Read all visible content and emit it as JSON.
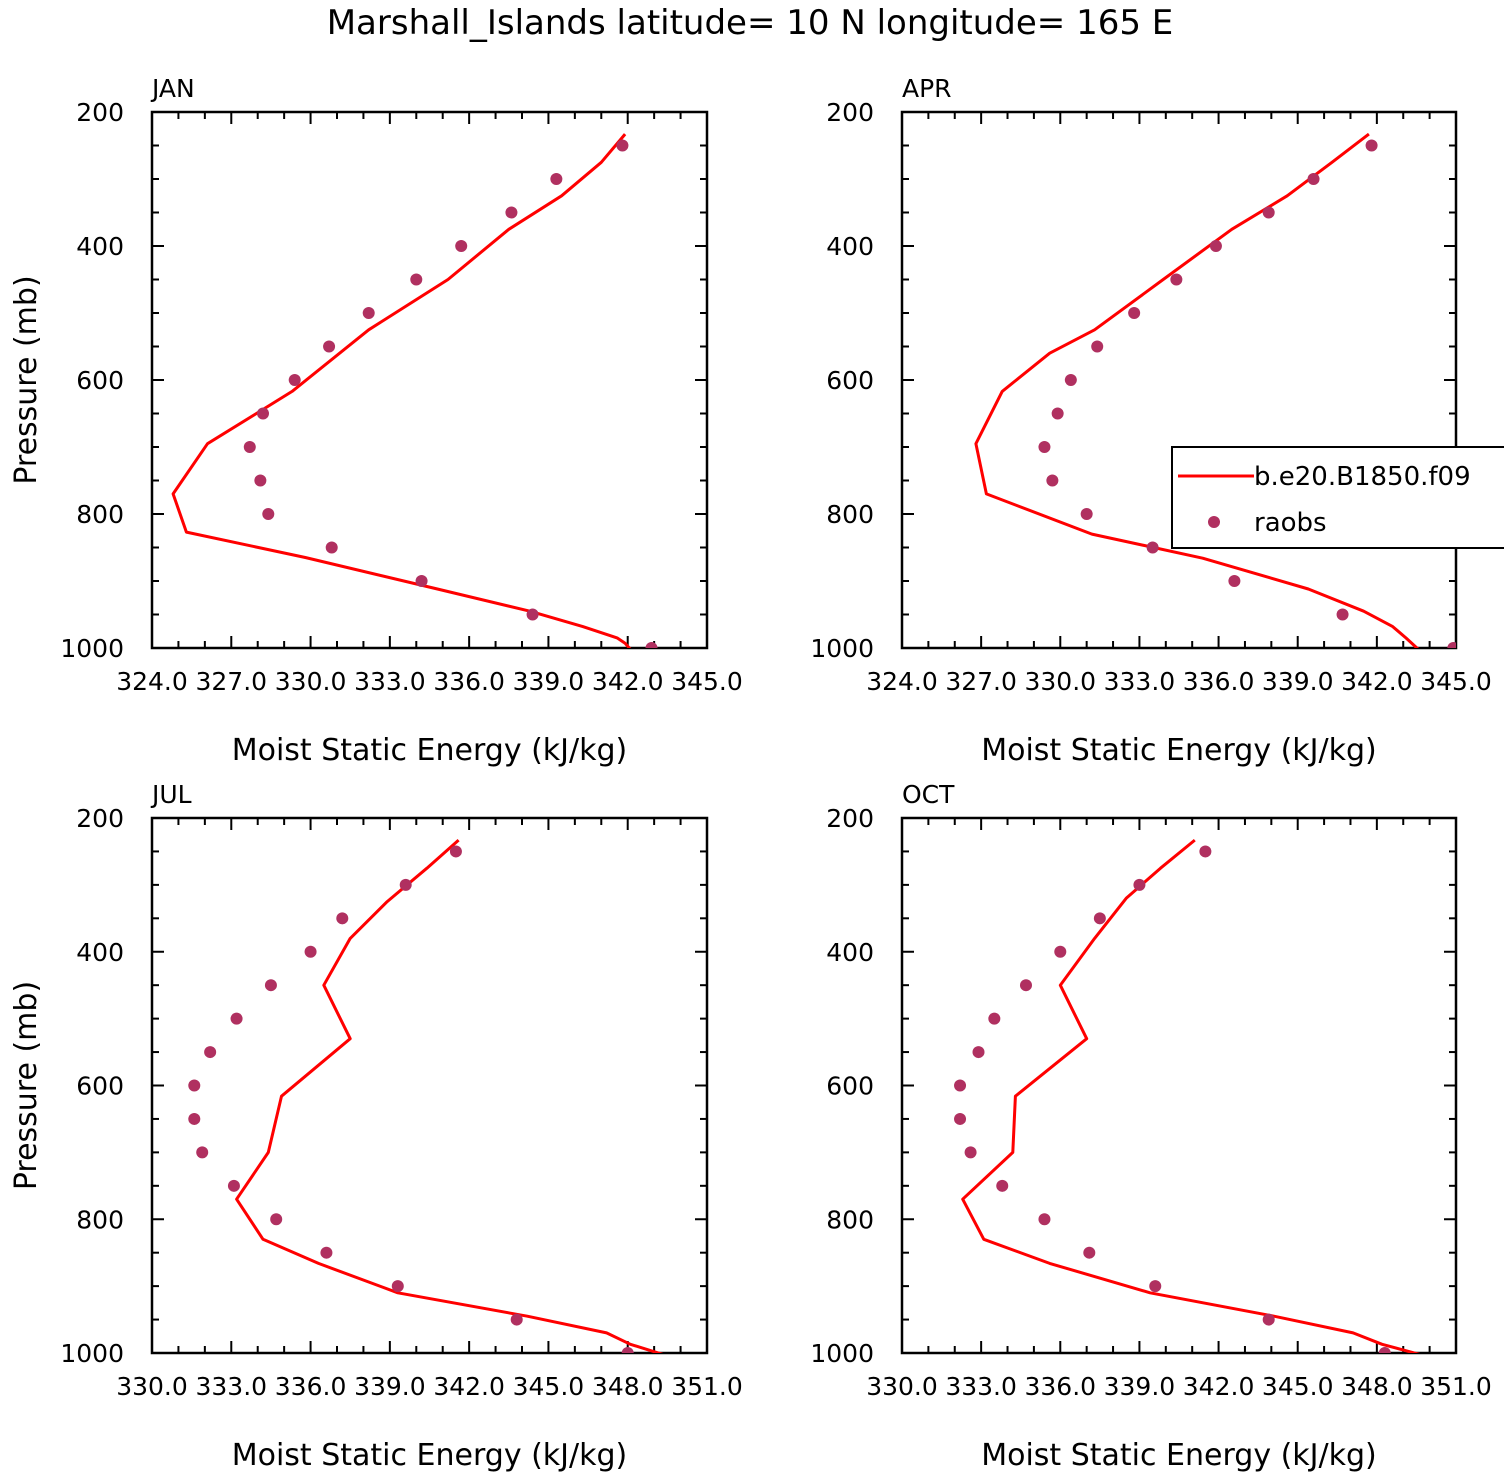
{
  "figure": {
    "title": "Marshall_Islands  latitude= 10 N longitude= 165 E"
  },
  "colors": {
    "model_line": "#ff0000",
    "raobs_marker": "#b03060",
    "axes": "#000000"
  },
  "legend": {
    "panel_index": 1,
    "entries": [
      {
        "label": "b.e20.B1850.f09",
        "kind": "line"
      },
      {
        "label": "raobs",
        "kind": "marker"
      }
    ]
  },
  "chart_data": [
    {
      "type": "line",
      "title": "JAN",
      "xlabel": "Moist Static Energy (kJ/kg)",
      "ylabel": "Pressure (mb)",
      "xlim": [
        324,
        345
      ],
      "ylim": [
        1000,
        200
      ],
      "xticks": [
        324,
        327,
        330,
        333,
        336,
        339,
        342,
        345
      ],
      "xtick_labels": [
        "324.0",
        "327.0",
        "330.0",
        "333.0",
        "336.0",
        "339.0",
        "342.0",
        "345.0"
      ],
      "yticks": [
        200,
        400,
        600,
        800,
        1000
      ],
      "ytick_labels": [
        "200",
        "400",
        "600",
        "800",
        "1000"
      ],
      "series": [
        {
          "kind": "line",
          "x": [
            341.9,
            341.0,
            339.5,
            337.5,
            335.2,
            332.2,
            329.3,
            326.1,
            324.8,
            325.3,
            329.8,
            334.8,
            338.3,
            340.3,
            341.6,
            341.9,
            342.1
          ],
          "y": [
            233,
            275,
            325,
            375,
            450,
            525,
            617,
            695,
            770,
            827,
            865,
            912,
            945,
            968,
            985,
            993,
            1002
          ]
        },
        {
          "kind": "scatter",
          "x": [
            341.8,
            339.3,
            337.6,
            335.7,
            334.0,
            332.2,
            330.7,
            329.4,
            328.2,
            327.7,
            328.1,
            328.4,
            330.8,
            334.2,
            338.4,
            342.9
          ],
          "y": [
            250,
            300,
            350,
            400,
            450,
            500,
            550,
            600,
            650,
            700,
            750,
            800,
            850,
            900,
            950,
            1000
          ]
        }
      ]
    },
    {
      "type": "line",
      "title": "APR",
      "xlabel": "Moist Static Energy (kJ/kg)",
      "ylabel": "",
      "xlim": [
        324,
        345
      ],
      "ylim": [
        1000,
        200
      ],
      "xticks": [
        324,
        327,
        330,
        333,
        336,
        339,
        342,
        345
      ],
      "xtick_labels": [
        "324.0",
        "327.0",
        "330.0",
        "333.0",
        "336.0",
        "339.0",
        "342.0",
        "345.0"
      ],
      "yticks": [
        200,
        400,
        600,
        800,
        1000
      ],
      "ytick_labels": [
        "200",
        "400",
        "600",
        "800",
        "1000"
      ],
      "series": [
        {
          "kind": "line",
          "x": [
            341.7,
            340.3,
            338.6,
            336.5,
            333.9,
            331.3,
            329.6,
            327.8,
            326.8,
            327.2,
            331.2,
            335.4,
            339.4,
            341.5,
            342.6,
            343.1,
            343.6
          ],
          "y": [
            233,
            275,
            325,
            375,
            450,
            525,
            560,
            617,
            695,
            770,
            830,
            866,
            912,
            945,
            968,
            985,
            1003
          ]
        },
        {
          "kind": "scatter",
          "x": [
            341.8,
            339.6,
            337.9,
            335.9,
            334.4,
            332.8,
            331.4,
            330.4,
            329.9,
            329.4,
            329.7,
            331.0,
            333.5,
            336.6,
            340.7,
            344.9
          ],
          "y": [
            250,
            300,
            350,
            400,
            450,
            500,
            550,
            600,
            650,
            700,
            750,
            800,
            850,
            900,
            950,
            1000
          ]
        }
      ]
    },
    {
      "type": "line",
      "title": "JUL",
      "xlabel": "Moist Static Energy (kJ/kg)",
      "ylabel": "Pressure (mb)",
      "xlim": [
        330,
        351
      ],
      "ylim": [
        1000,
        200
      ],
      "xticks": [
        330,
        333,
        336,
        339,
        342,
        345,
        348,
        351
      ],
      "xtick_labels": [
        "330.0",
        "333.0",
        "336.0",
        "339.0",
        "342.0",
        "345.0",
        "348.0",
        "351.0"
      ],
      "yticks": [
        200,
        400,
        600,
        800,
        1000
      ],
      "ytick_labels": [
        "200",
        "400",
        "600",
        "800",
        "1000"
      ],
      "series": [
        {
          "kind": "line",
          "x": [
            341.6,
            340.4,
            338.9,
            337.5,
            336.5,
            337.5,
            334.9,
            334.4,
            333.2,
            334.2,
            336.3,
            339.3,
            344.2,
            347.2,
            348.1,
            349.4
          ],
          "y": [
            233,
            275,
            325,
            380,
            450,
            530,
            616,
            700,
            770,
            830,
            866,
            910,
            945,
            970,
            987,
            1003
          ]
        },
        {
          "kind": "scatter",
          "x": [
            341.5,
            339.6,
            337.2,
            336.0,
            334.5,
            333.2,
            332.2,
            331.6,
            331.6,
            331.9,
            333.1,
            334.7,
            336.6,
            339.3,
            343.8,
            348.0
          ],
          "y": [
            250,
            300,
            350,
            400,
            450,
            500,
            550,
            600,
            650,
            700,
            750,
            800,
            850,
            900,
            950,
            1000
          ]
        }
      ]
    },
    {
      "type": "line",
      "title": "OCT",
      "xlabel": "Moist Static Energy (kJ/kg)",
      "ylabel": "",
      "xlim": [
        330,
        351
      ],
      "ylim": [
        1000,
        200
      ],
      "xticks": [
        330,
        333,
        336,
        339,
        342,
        345,
        348,
        351
      ],
      "xtick_labels": [
        "330.0",
        "333.0",
        "336.0",
        "339.0",
        "342.0",
        "345.0",
        "348.0",
        "351.0"
      ],
      "yticks": [
        200,
        400,
        600,
        800,
        1000
      ],
      "ytick_labels": [
        "200",
        "400",
        "600",
        "800",
        "1000"
      ],
      "series": [
        {
          "kind": "line",
          "x": [
            341.1,
            339.8,
            338.5,
            337.3,
            336.0,
            337.0,
            334.3,
            334.2,
            332.3,
            333.1,
            335.6,
            339.4,
            344.1,
            347.1,
            348.2,
            349.7
          ],
          "y": [
            233,
            275,
            320,
            380,
            450,
            530,
            616,
            700,
            770,
            830,
            866,
            910,
            945,
            970,
            987,
            1003
          ]
        },
        {
          "kind": "scatter",
          "x": [
            341.5,
            339.0,
            337.5,
            336.0,
            334.7,
            333.5,
            332.9,
            332.2,
            332.2,
            332.6,
            333.8,
            335.4,
            337.1,
            339.6,
            343.9,
            348.3
          ],
          "y": [
            250,
            300,
            350,
            400,
            450,
            500,
            550,
            600,
            650,
            700,
            750,
            800,
            850,
            900,
            950,
            1000
          ]
        }
      ]
    }
  ]
}
